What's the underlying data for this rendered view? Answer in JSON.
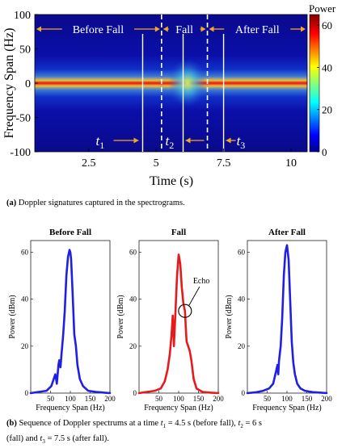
{
  "chart_data": [
    {
      "type": "heatmap",
      "ylabel": "Frequency Span (Hz)",
      "xlabel": "Time (s)",
      "xlim": [
        0.5,
        10.6
      ],
      "ylim": [
        -100,
        100
      ],
      "x_ticks": [
        2.5,
        5,
        7.5,
        10
      ],
      "y_ticks": [
        100,
        50,
        0,
        -50,
        -100
      ],
      "colorbar": {
        "title": "Power",
        "ticks": [
          0,
          20,
          40,
          60
        ],
        "range": [
          0,
          65
        ]
      },
      "regions": [
        {
          "label": "Before Fall",
          "start": 0.5,
          "end": 5.2
        },
        {
          "label": "Fall",
          "start": 5.2,
          "end": 6.9
        },
        {
          "label": "After Fall",
          "start": 6.9,
          "end": 10.6
        }
      ],
      "region_boundaries": [
        5.2,
        6.9
      ],
      "markers": [
        {
          "label": "t1",
          "base": "t",
          "sub": "1",
          "x": 4.5,
          "arrow": "right"
        },
        {
          "label": "t2",
          "base": "t",
          "sub": "2",
          "x": 6.0,
          "arrow": "left"
        },
        {
          "label": "t3",
          "base": "t",
          "sub": "3",
          "x": 7.5,
          "arrow": "left"
        }
      ]
    },
    {
      "type": "line",
      "title": "Before Fall",
      "xlabel": "Frequency Span (Hz)",
      "ylabel": "Power (dBm)",
      "xlim": [
        0,
        200
      ],
      "ylim": [
        0,
        65
      ],
      "x_ticks": [
        50,
        100,
        150,
        200
      ],
      "y_ticks": [
        0,
        20,
        40,
        60
      ],
      "color": "#1f1fe6",
      "x": [
        0,
        20,
        40,
        52,
        58,
        62,
        66,
        70,
        72,
        75,
        78,
        82,
        86,
        90,
        94,
        98,
        100,
        102,
        106,
        110,
        114,
        118,
        124,
        132,
        145,
        165,
        185,
        200
      ],
      "y": [
        0,
        0.5,
        1,
        3,
        6,
        8,
        4,
        12,
        14,
        11,
        17,
        25,
        35,
        50,
        58,
        61,
        60,
        57,
        42,
        25,
        20,
        12,
        6,
        3,
        1,
        0.5,
        0.2,
        0
      ]
    },
    {
      "type": "line",
      "title": "Fall",
      "xlabel": "Frequency Span (Hz)",
      "ylabel": "Power (dBm)",
      "xlim": [
        0,
        200
      ],
      "ylim": [
        0,
        65
      ],
      "x_ticks": [
        50,
        100,
        150,
        200
      ],
      "y_ticks": [
        0,
        20,
        40,
        60
      ],
      "color": "#e61a1a",
      "x": [
        0,
        20,
        40,
        55,
        65,
        72,
        78,
        82,
        85,
        88,
        92,
        96,
        100,
        104,
        108,
        112,
        116,
        118,
        120,
        124,
        128,
        132,
        138,
        145,
        160,
        180,
        200
      ],
      "y": [
        0,
        0.5,
        1,
        2,
        5,
        10,
        17,
        25,
        33,
        20,
        35,
        50,
        59,
        55,
        45,
        38,
        35,
        28,
        22,
        20,
        18,
        14,
        6,
        2,
        0.5,
        0.2,
        0
      ],
      "annotation": {
        "label": "Echo",
        "x": 116,
        "y": 35
      }
    },
    {
      "type": "line",
      "title": "After Fall",
      "xlabel": "Frequency Span (Hz)",
      "ylabel": "Power (dBm)",
      "xlim": [
        0,
        200
      ],
      "ylim": [
        0,
        65
      ],
      "x_ticks": [
        50,
        100,
        150,
        200
      ],
      "y_ticks": [
        0,
        20,
        40,
        60
      ],
      "color": "#1f1fe6",
      "x": [
        0,
        20,
        40,
        55,
        65,
        72,
        76,
        78,
        80,
        84,
        88,
        92,
        96,
        100,
        104,
        108,
        112,
        116,
        120,
        126,
        134,
        145,
        165,
        185,
        200
      ],
      "y": [
        0,
        0.3,
        1,
        2,
        4,
        9,
        12,
        8,
        14,
        20,
        32,
        50,
        60,
        63,
        57,
        40,
        22,
        13,
        8,
        4,
        2,
        1,
        0.4,
        0.2,
        0
      ]
    }
  ],
  "captions": {
    "a": {
      "tag": "(a)",
      "text": " Doppler signatures captured in the spectrograms."
    },
    "b": {
      "tag": "(b)",
      "line1_pre": " Sequence of Doppler spectrums at a time ",
      "t1": "t",
      "t1_sub": "1",
      "t1_val": " = 4.5 s (before fall), ",
      "t2": "t",
      "t2_sub": "2",
      "t2_val": " = 6 s",
      "line2_pre": "(fall) and ",
      "t3": "t",
      "t3_sub": "3",
      "t3_val": " = 7.5 s (after fall)."
    }
  }
}
